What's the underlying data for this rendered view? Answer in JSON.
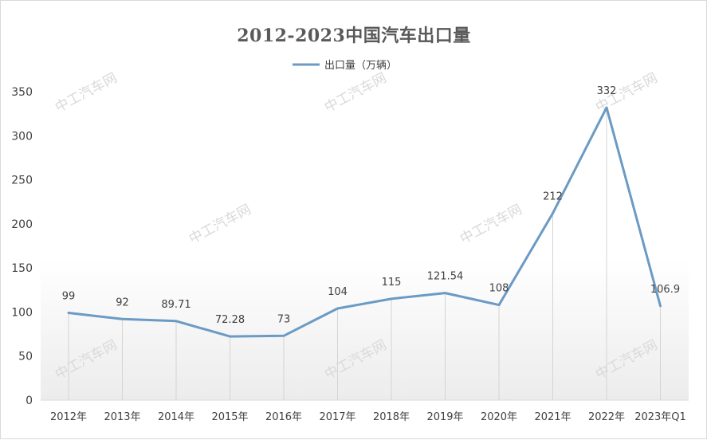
{
  "chart_data": {
    "type": "line",
    "title": "2012-2023中国汽车出口量",
    "legend": {
      "position": "top",
      "entries": [
        "出口量（万辆）"
      ]
    },
    "categories": [
      "2012年",
      "2013年",
      "2014年",
      "2015年",
      "2016年",
      "2017年",
      "2018年",
      "2019年",
      "2020年",
      "2021年",
      "2022年",
      "2023年Q1"
    ],
    "series": [
      {
        "name": "出口量（万辆）",
        "values": [
          99,
          92,
          89.71,
          72.28,
          73,
          104,
          115,
          121.54,
          108,
          212,
          332,
          106.9
        ],
        "labels": [
          "99",
          "92",
          "89.71",
          "72.28",
          "73",
          "104",
          "115",
          "121.54",
          "108",
          "212",
          "332",
          "106.9"
        ]
      }
    ],
    "ylim": [
      0,
      350
    ],
    "yticks": [
      "0",
      "50",
      "100",
      "150",
      "200",
      "250",
      "300",
      "350"
    ],
    "grid": "vertical drop lines",
    "line_color": "#6b9ac4",
    "watermark": "中工汽车网"
  }
}
